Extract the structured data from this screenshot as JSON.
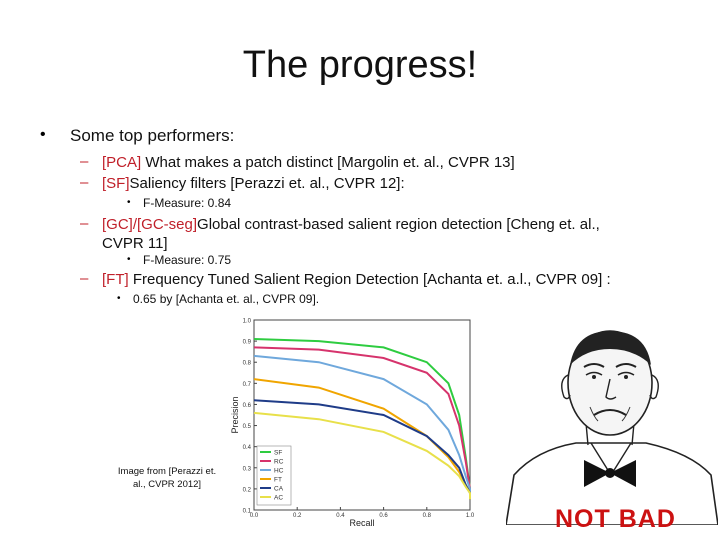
{
  "slide": {
    "title": "The progress!",
    "top_bullet": "Some top performers:",
    "items": [
      {
        "tag": "[PCA]",
        "text": " What makes a patch distinct [Margolin et. al., CVPR 13]"
      },
      {
        "tag": "[SF]",
        "text": "Saliency filters [Perazzi et. al., CVPR 12]:"
      },
      {
        "sub": "F-Measure: 0.84"
      },
      {
        "tag": "[GC]/[GC-seg]",
        "text": "Global contrast-based salient region detection [Cheng et. al.,",
        "text2": "CVPR 11]"
      },
      {
        "sub": "F-Measure: 0.75"
      },
      {
        "tag": "[FT]",
        "text": " Frequency Tuned Salient Region Detection [Achanta et. a.l., CVPR 09] :"
      },
      {
        "sub": "0.65 by [Achanta et. al., CVPR 09]."
      }
    ],
    "bullet_glyph": "•",
    "dash_glyph": "–",
    "caption": "Image from [Perazzi et. al., CVPR 2012]",
    "meme_text": "NOT BAD"
  },
  "chart_data": {
    "type": "line",
    "xlabel": "Recall",
    "ylabel": "Precision",
    "xlim": [
      0.0,
      1.0
    ],
    "ylim": [
      0.1,
      1.0
    ],
    "x_ticks": [
      "0.0",
      "0.2",
      "0.4",
      "0.6",
      "0.8",
      "1.0"
    ],
    "y_ticks": [
      "1.0",
      "0.9",
      "0.8",
      "0.7",
      "0.6",
      "0.5",
      "0.4",
      "0.3",
      "0.2",
      "0.1"
    ],
    "legend_position": "lower-left",
    "series": [
      {
        "name": "SF",
        "color": "#2ecc40",
        "x": [
          0.0,
          0.3,
          0.6,
          0.8,
          0.9,
          0.95,
          0.98,
          1.0,
          1.0
        ],
        "y": [
          0.91,
          0.9,
          0.87,
          0.8,
          0.7,
          0.55,
          0.35,
          0.2,
          0.15
        ]
      },
      {
        "name": "RC",
        "color": "#d6336c",
        "x": [
          0.0,
          0.3,
          0.6,
          0.8,
          0.9,
          0.95,
          0.98,
          1.0,
          1.0
        ],
        "y": [
          0.87,
          0.86,
          0.82,
          0.75,
          0.65,
          0.5,
          0.33,
          0.2,
          0.15
        ]
      },
      {
        "name": "HC",
        "color": "#6fa8dc",
        "x": [
          0.0,
          0.3,
          0.6,
          0.8,
          0.9,
          0.95,
          0.98,
          1.0,
          1.0
        ],
        "y": [
          0.83,
          0.8,
          0.72,
          0.6,
          0.48,
          0.36,
          0.26,
          0.2,
          0.15
        ]
      },
      {
        "name": "FT",
        "color": "#f0a500",
        "x": [
          0.0,
          0.3,
          0.6,
          0.8,
          0.9,
          0.95,
          0.98,
          1.0,
          1.0
        ],
        "y": [
          0.72,
          0.68,
          0.58,
          0.45,
          0.35,
          0.28,
          0.22,
          0.18,
          0.15
        ]
      },
      {
        "name": "CA",
        "color": "#1f3c88",
        "x": [
          0.0,
          0.3,
          0.6,
          0.8,
          0.9,
          0.95,
          0.98,
          1.0,
          1.0
        ],
        "y": [
          0.62,
          0.6,
          0.55,
          0.45,
          0.36,
          0.3,
          0.22,
          0.18,
          0.15
        ]
      },
      {
        "name": "AC",
        "color": "#e8e04a",
        "x": [
          0.0,
          0.3,
          0.6,
          0.8,
          0.9,
          0.95,
          0.98,
          1.0,
          1.0
        ],
        "y": [
          0.56,
          0.53,
          0.47,
          0.38,
          0.31,
          0.26,
          0.21,
          0.18,
          0.15
        ]
      }
    ]
  }
}
